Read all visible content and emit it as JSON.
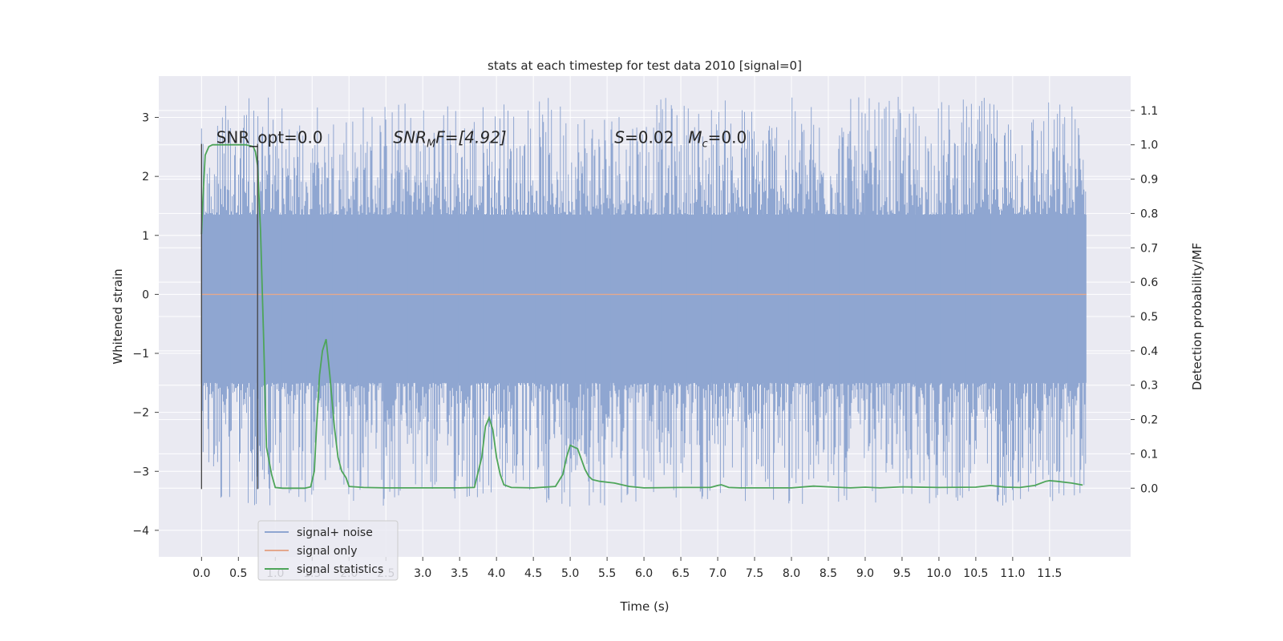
{
  "chart_data": {
    "type": "line",
    "title": "stats at each timestep for test data 2010 [signal=0]",
    "xlabel": "Time (s)",
    "ylabel": "Whitened strain",
    "ylabel_right": "Detection probability/MF",
    "xlim": [
      -0.58,
      12.6
    ],
    "ylim": [
      -4.45,
      3.7
    ],
    "ylim_right": [
      -0.2,
      1.2
    ],
    "x_ticks": [
      0.0,
      0.5,
      1.0,
      1.5,
      2.0,
      2.5,
      3.0,
      3.5,
      4.0,
      4.5,
      5.0,
      5.5,
      6.0,
      6.5,
      7.0,
      7.5,
      8.0,
      8.5,
      9.0,
      9.5,
      10.0,
      10.5,
      11.0,
      11.5
    ],
    "x_tick_labels": [
      "0.0",
      "0.5",
      "1.0",
      "1.5",
      "2.0",
      "2.5",
      "3.0",
      "3.5",
      "4.0",
      "4.5",
      "5.0",
      "5.5",
      "6.0",
      "6.5",
      "7.0",
      "7.5",
      "8.0",
      "8.5",
      "9.0",
      "9.5",
      "10.0",
      "10.5",
      "11.0",
      "11.5"
    ],
    "y_ticks": [
      -4,
      -3,
      -2,
      -1,
      0,
      1,
      2,
      3
    ],
    "y_tick_labels": [
      "−4",
      "−3",
      "−2",
      "−1",
      "0",
      "1",
      "2",
      "3"
    ],
    "y_right_ticks": [
      0.0,
      0.1,
      0.2,
      0.3,
      0.4,
      0.5,
      0.6,
      0.7,
      0.8,
      0.9,
      1.0,
      1.1
    ],
    "y_right_tick_labels": [
      "0.0",
      "0.1",
      "0.2",
      "0.3",
      "0.4",
      "0.5",
      "0.6",
      "0.7",
      "0.8",
      "0.9",
      "1.0",
      "1.1"
    ],
    "grid": true,
    "legend_position": "lower-left",
    "annotations": {
      "snr_opt": "SNR_opt=0.0",
      "snr_mf_main": "SNR",
      "snr_mf_sub": "M",
      "snr_mf_rest": "F=[4.92]",
      "s_main": "S",
      "s_rest": "=0.02",
      "mc_main": "M",
      "mc_sub": "c",
      "mc_rest": "=0.0"
    },
    "markers": {
      "window_start": 0.0,
      "window_end": 0.76,
      "marker_top": 2.55,
      "marker_bottom": -3.3
    },
    "noise_band": {
      "name": "signal+ noise",
      "x_start": 0.0,
      "x_end": 12.0,
      "dense_upper": 1.35,
      "dense_lower": -1.5,
      "max": 3.35,
      "min": -3.6,
      "color": "#8fa6d1"
    },
    "series": [
      {
        "name": "signal+ noise",
        "axis": "left",
        "color": "#8fa6d1",
        "x": [
          0.0,
          12.0
        ],
        "y": [
          0.0,
          0.0
        ]
      },
      {
        "name": "signal only",
        "axis": "left",
        "color": "#e4a88d",
        "x": [
          0.0,
          12.0
        ],
        "y": [
          0.0,
          0.0
        ]
      },
      {
        "name": "signal statistics",
        "axis": "right",
        "color": "#4ea55a",
        "x": [
          0.0,
          0.02,
          0.05,
          0.1,
          0.15,
          0.2,
          0.3,
          0.4,
          0.5,
          0.6,
          0.7,
          0.73,
          0.76,
          0.8,
          0.84,
          0.88,
          0.95,
          1.0,
          1.1,
          1.2,
          1.3,
          1.4,
          1.48,
          1.53,
          1.56,
          1.6,
          1.64,
          1.69,
          1.74,
          1.8,
          1.85,
          1.9,
          1.96,
          2.0,
          2.2,
          2.5,
          3.0,
          3.5,
          3.7,
          3.8,
          3.85,
          3.9,
          3.95,
          4.0,
          4.05,
          4.1,
          4.2,
          4.5,
          4.8,
          4.9,
          4.95,
          5.0,
          5.05,
          5.1,
          5.15,
          5.2,
          5.25,
          5.3,
          5.4,
          5.6,
          5.8,
          6.0,
          6.5,
          6.9,
          7.0,
          7.05,
          7.15,
          7.3,
          8.0,
          8.3,
          8.5,
          8.8,
          9.0,
          9.2,
          9.5,
          10.0,
          10.5,
          10.7,
          10.9,
          11.1,
          11.3,
          11.45,
          11.5,
          11.6,
          11.8,
          11.95
        ],
        "y": [
          0.74,
          0.85,
          0.97,
          0.995,
          1.0,
          1.0,
          1.0,
          1.0,
          1.0,
          1.0,
          0.995,
          0.98,
          0.94,
          0.75,
          0.45,
          0.12,
          0.04,
          0.002,
          0.0,
          0.0,
          0.0,
          0.0,
          0.004,
          0.05,
          0.18,
          0.33,
          0.4,
          0.434,
          0.33,
          0.18,
          0.09,
          0.05,
          0.03,
          0.005,
          0.002,
          0.001,
          0.001,
          0.001,
          0.002,
          0.09,
          0.18,
          0.205,
          0.17,
          0.09,
          0.04,
          0.01,
          0.002,
          0.001,
          0.005,
          0.04,
          0.09,
          0.125,
          0.12,
          0.115,
          0.085,
          0.055,
          0.035,
          0.025,
          0.02,
          0.015,
          0.005,
          0.001,
          0.002,
          0.002,
          0.008,
          0.01,
          0.002,
          0.001,
          0.001,
          0.006,
          0.004,
          0.001,
          0.003,
          0.001,
          0.004,
          0.002,
          0.003,
          0.008,
          0.003,
          0.002,
          0.008,
          0.02,
          0.022,
          0.02,
          0.015,
          0.009
        ]
      }
    ]
  }
}
